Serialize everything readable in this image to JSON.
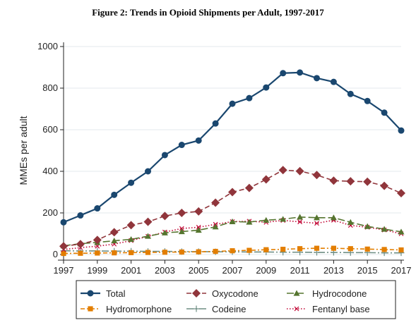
{
  "title": "Figure 2: Trends in Opioid Shipments per Adult, 1997-2017",
  "chart_data": {
    "type": "line",
    "title": "Figure 2: Trends in Opioid Shipments per Adult, 1997-2017",
    "xlabel": "",
    "ylabel": "MMEs per adult",
    "x": [
      1997,
      1998,
      1999,
      2000,
      2001,
      2002,
      2003,
      2004,
      2005,
      2006,
      2007,
      2008,
      2009,
      2010,
      2011,
      2012,
      2013,
      2014,
      2015,
      2016,
      2017
    ],
    "xticks": [
      "1997",
      "1999",
      "2001",
      "2003",
      "2005",
      "2007",
      "2009",
      "2011",
      "2013",
      "2015",
      "2017"
    ],
    "yticks": [
      "0",
      "200",
      "400",
      "600",
      "800",
      "1000"
    ],
    "xlim": [
      1997,
      2017
    ],
    "ylim": [
      0,
      1000
    ],
    "grid": true,
    "legend_position": "bottom",
    "series": [
      {
        "name": "Total",
        "color": "#1a476f",
        "marker": "circle",
        "dash": "solid",
        "values": [
          155,
          188,
          222,
          287,
          345,
          400,
          478,
          527,
          548,
          630,
          725,
          752,
          803,
          872,
          875,
          848,
          830,
          772,
          738,
          682,
          596
        ]
      },
      {
        "name": "Oxycodone",
        "color": "#90353b",
        "marker": "diamond",
        "dash": "dash",
        "values": [
          40,
          50,
          70,
          107,
          141,
          157,
          185,
          200,
          207,
          249,
          300,
          320,
          361,
          406,
          401,
          382,
          355,
          352,
          350,
          330,
          295
        ]
      },
      {
        "name": "Hydrocodone",
        "color": "#55752f",
        "marker": "triangle",
        "dash": "longdash",
        "values": [
          42,
          52,
          58,
          66,
          73,
          88,
          104,
          110,
          117,
          133,
          158,
          156,
          165,
          170,
          180,
          177,
          177,
          155,
          135,
          122,
          109
        ]
      },
      {
        "name": "Hydromorphone",
        "color": "#e37e00",
        "marker": "square",
        "dash": "dashdot",
        "values": [
          5,
          6,
          7,
          8,
          9,
          10,
          11,
          12,
          13,
          15,
          18,
          20,
          23,
          25,
          28,
          30,
          30,
          28,
          26,
          24,
          22
        ]
      },
      {
        "name": "Codeine",
        "color": "#6e8e84",
        "marker": "plus",
        "dash": "longdashdot",
        "values": [
          18,
          17,
          17,
          16,
          16,
          15,
          15,
          14,
          14,
          13,
          13,
          12,
          12,
          11,
          11,
          10,
          10,
          9,
          9,
          8,
          8
        ]
      },
      {
        "name": "Fentanyl base",
        "color": "#c10534",
        "marker": "x",
        "dash": "dot",
        "values": [
          24,
          33,
          40,
          50,
          67,
          87,
          108,
          125,
          131,
          145,
          158,
          160,
          155,
          164,
          157,
          150,
          165,
          140,
          131,
          118,
          100
        ]
      }
    ]
  }
}
